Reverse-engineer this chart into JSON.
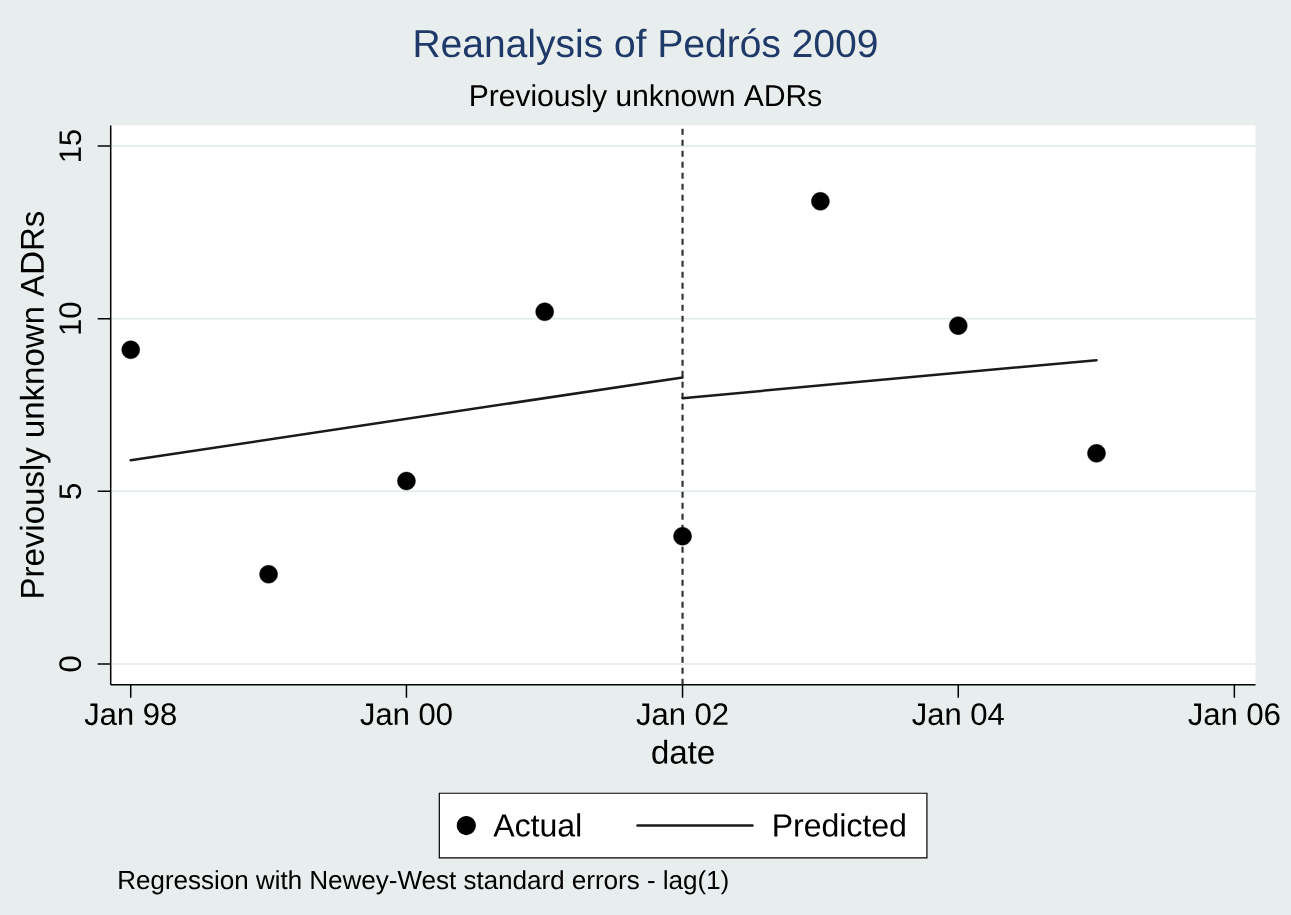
{
  "chart_data": {
    "type": "scatter",
    "title": "Reanalysis of Pedrós 2009",
    "subtitle": "Previously unknown ADRs",
    "xlabel": "date",
    "ylabel": "Previously unknown ADRs",
    "xlim": [
      "1997-11-09",
      "2006-02-26"
    ],
    "xticks": [
      {
        "value": "1998-01",
        "label": "Jan 98"
      },
      {
        "value": "2000-01",
        "label": "Jan 00"
      },
      {
        "value": "2002-01",
        "label": "Jan 02"
      },
      {
        "value": "2004-01",
        "label": "Jan 04"
      },
      {
        "value": "2006-01",
        "label": "Jan 06"
      }
    ],
    "ylim": [
      -0.6,
      15.6
    ],
    "yticks": [
      0,
      5,
      10,
      15
    ],
    "grid": "y",
    "legend": "bottom",
    "series": [
      {
        "name": "Actual",
        "color": "#000000",
        "marker": "circle",
        "x": [
          "1998-01",
          "1999-01",
          "2000-01",
          "2001-01",
          "2002-01",
          "2003-01",
          "2004-01",
          "2005-01"
        ],
        "values": [
          9.1,
          2.6,
          5.3,
          10.2,
          3.7,
          13.4,
          9.8,
          6.1
        ]
      },
      {
        "name": "Predicted",
        "type": "line",
        "color": "#1a1a1a",
        "marker": "none",
        "line_style": "solid",
        "x": [
          "1998-01",
          "2002-01"
        ],
        "values": [
          5.9,
          8.3
        ]
      },
      {
        "type": "line",
        "color": "#1a1a1a",
        "marker": "none",
        "line_style": "solid",
        "x": [
          "2002-01",
          "2005-01"
        ],
        "values": [
          7.7,
          8.8
        ]
      }
    ],
    "ref_lines": [
      {
        "axis": "x",
        "value": "2002-01",
        "line_style": "dashed",
        "color": "#333333"
      }
    ],
    "annotations": [
      "Regression with Newey-West standard errors - lag(1)"
    ]
  }
}
